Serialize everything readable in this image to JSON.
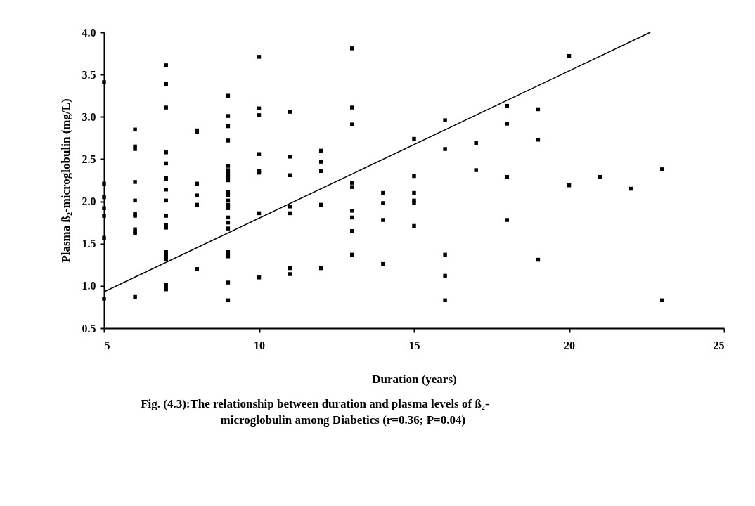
{
  "chart_data": {
    "type": "scatter",
    "xlabel": "Duration (years)",
    "ylabel": "Plasma ß₂-microglobulin (mg/L)",
    "annotations": [
      "Fig. (4.3):The relationship between duration and plasma levels of ß₂-microglobulin among Diabetics (r=0.36; P=0.04)"
    ],
    "xlim": [
      5,
      25
    ],
    "xticks": [
      5,
      10,
      15,
      20,
      25
    ],
    "ylim": [
      0.5,
      4.0
    ],
    "yticks": [
      0.5,
      {
        "value": 1.0,
        "label": "1.0"
      },
      1.5,
      {
        "value": 2.0,
        "label": "2.0"
      },
      2.5,
      {
        "value": 3.0,
        "label": "3.0"
      },
      3.5,
      {
        "value": 4.0,
        "label": "4.0"
      }
    ],
    "grid": false,
    "marker": "square",
    "series": [
      {
        "color": "#000000",
        "x": [
          5,
          5,
          5,
          5,
          5,
          5,
          5,
          6,
          6,
          6,
          6,
          6,
          6,
          6,
          6,
          6,
          6,
          6,
          7,
          7,
          7,
          7,
          7,
          7,
          7,
          7,
          7,
          7,
          7,
          7,
          7,
          7,
          7,
          7,
          7,
          8,
          8,
          8,
          8,
          8,
          8,
          9,
          9,
          9,
          9,
          9,
          9,
          9,
          9,
          9,
          9,
          9,
          9,
          9,
          9,
          9,
          9,
          9,
          9,
          9,
          9,
          9,
          10,
          10,
          10,
          10,
          10,
          10,
          10,
          10,
          11,
          11,
          11,
          11,
          11,
          11,
          11,
          12,
          12,
          12,
          12,
          12,
          13,
          13,
          13,
          13,
          13,
          13,
          13,
          13,
          13,
          14,
          14,
          14,
          14,
          15,
          15,
          15,
          15,
          15,
          15,
          16,
          16,
          16,
          16,
          16,
          17,
          17,
          18,
          18,
          18,
          18,
          19,
          19,
          19,
          20,
          20,
          21,
          22,
          23,
          23
        ],
        "values": [
          3.41,
          2.21,
          2.05,
          1.92,
          1.83,
          1.57,
          0.85,
          2.85,
          2.65,
          2.62,
          2.23,
          2.01,
          1.85,
          1.83,
          1.67,
          1.64,
          1.62,
          0.87,
          3.61,
          3.39,
          3.11,
          2.58,
          2.45,
          2.28,
          2.26,
          2.14,
          2.01,
          1.83,
          1.72,
          1.69,
          1.4,
          1.36,
          1.32,
          1.01,
          0.96,
          2.84,
          2.82,
          2.21,
          2.07,
          1.96,
          1.2,
          3.25,
          3.01,
          2.89,
          2.72,
          2.42,
          2.37,
          2.33,
          2.29,
          2.25,
          2.11,
          2.07,
          2.01,
          1.96,
          1.92,
          1.81,
          1.75,
          1.68,
          1.4,
          1.35,
          1.04,
          0.83,
          3.71,
          3.1,
          3.02,
          2.56,
          2.36,
          2.34,
          1.86,
          1.1,
          3.06,
          2.53,
          2.31,
          1.94,
          1.86,
          1.21,
          1.14,
          2.6,
          2.47,
          2.36,
          1.96,
          1.21,
          3.81,
          3.11,
          2.91,
          2.22,
          2.17,
          1.89,
          1.81,
          1.65,
          1.37,
          2.1,
          1.98,
          1.78,
          1.26,
          2.74,
          2.3,
          2.1,
          2.01,
          1.98,
          1.71,
          2.96,
          2.62,
          1.37,
          1.12,
          0.83,
          2.69,
          2.37,
          3.13,
          2.92,
          2.29,
          1.78,
          3.09,
          2.73,
          1.31,
          3.72,
          2.19,
          2.29,
          2.15,
          2.38,
          0.83
        ]
      },
      {
        "type": "line",
        "color": "#000000",
        "x": [
          5,
          22.62
        ],
        "values": [
          0.93,
          4.0
        ],
        "marker": "none",
        "line_style": "solid"
      }
    ]
  }
}
